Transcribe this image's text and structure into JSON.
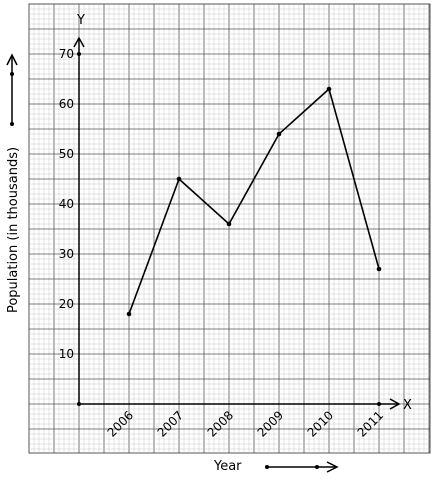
{
  "chart_data": {
    "type": "line",
    "title": "",
    "xlabel": "Year",
    "ylabel": "Population (in thousands)",
    "x_axis_letter": "X",
    "y_axis_letter": "Y",
    "categories": [
      "2006",
      "2007",
      "2008",
      "2009",
      "2010",
      "2011"
    ],
    "values": [
      18,
      45,
      36,
      54,
      63,
      27
    ],
    "y_ticks": [
      "10",
      "20",
      "30",
      "40",
      "50",
      "60",
      "70"
    ],
    "ylim": [
      0,
      70
    ],
    "grid": true,
    "colors": {
      "line": "#000000",
      "grid_major": "#555555",
      "grid_minor": "#bbbbbb"
    }
  }
}
